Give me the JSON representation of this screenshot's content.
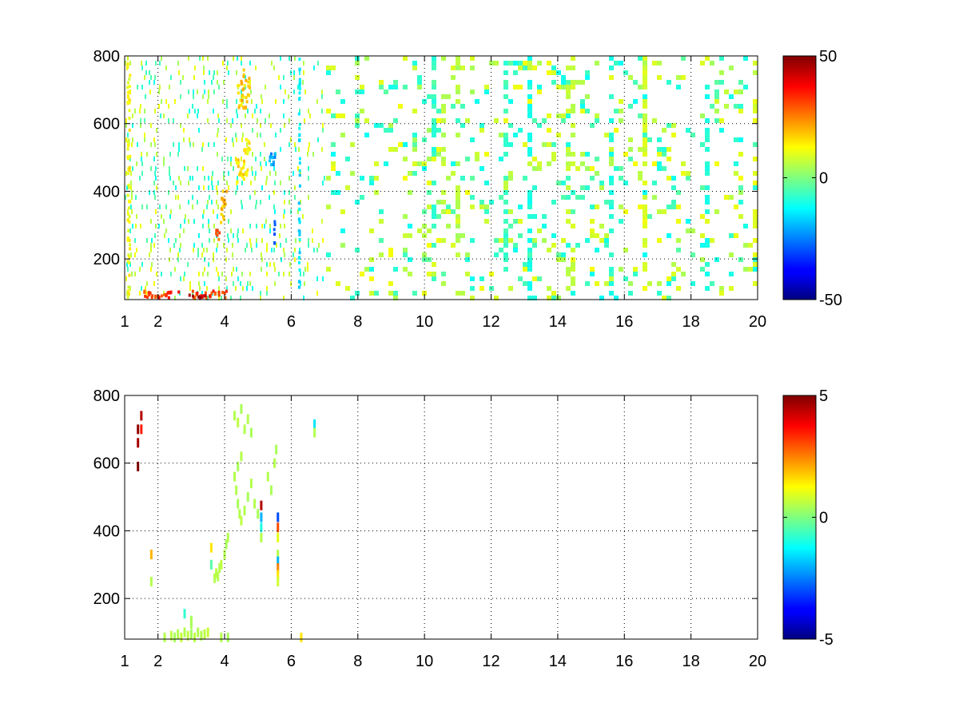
{
  "chart_data": [
    {
      "type": "heatmap",
      "title": "",
      "xlabel": "",
      "ylabel": "",
      "xlim": [
        1,
        20
      ],
      "ylim": [
        80,
        800
      ],
      "x_ticks": [
        1,
        2,
        4,
        6,
        8,
        10,
        12,
        14,
        16,
        18,
        20
      ],
      "y_ticks": [
        200,
        400,
        600,
        800
      ],
      "grid": true,
      "colormap": "jet",
      "clim": [
        -50,
        50
      ],
      "colorbar_ticks": [
        "50",
        "0",
        "-50"
      ],
      "seed": 7,
      "density_profile": [
        {
          "x": 1.0,
          "d": 0.3
        },
        {
          "x": 2.0,
          "d": 0.26
        },
        {
          "x": 4.0,
          "d": 0.33
        },
        {
          "x": 6.0,
          "d": 0.26
        },
        {
          "x": 8.0,
          "d": 0.12
        },
        {
          "x": 10.0,
          "d": 0.13
        },
        {
          "x": 12.0,
          "d": 0.13
        },
        {
          "x": 14.0,
          "d": 0.15
        },
        {
          "x": 16.0,
          "d": 0.14
        },
        {
          "x": 18.0,
          "d": 0.1
        },
        {
          "x": 20.0,
          "d": 0.11
        }
      ],
      "dense_columns": [
        {
          "x": 10.3,
          "d": 0.45,
          "v": -8
        },
        {
          "x": 10.6,
          "d": 0.35,
          "v": 6
        },
        {
          "x": 11.0,
          "d": 0.35,
          "v": 5
        },
        {
          "x": 12.4,
          "d": 0.4,
          "v": -7
        },
        {
          "x": 13.2,
          "d": 0.6,
          "v": -10
        },
        {
          "x": 14.4,
          "d": 0.4,
          "v": 7
        },
        {
          "x": 15.6,
          "d": 0.55,
          "v": -9
        },
        {
          "x": 16.6,
          "d": 0.55,
          "v": 8
        },
        {
          "x": 18.5,
          "d": 0.5,
          "v": -10
        },
        {
          "x": 20.0,
          "d": 0.45,
          "v": 9
        }
      ],
      "features": [
        {
          "x": [
            1.4,
            4.2
          ],
          "y": [
            80,
            110
          ],
          "v": 32
        },
        {
          "x": [
            2.8,
            3.5
          ],
          "y": [
            80,
            100
          ],
          "v": 45
        },
        {
          "x": [
            3.7,
            3.9
          ],
          "y": [
            250,
            300
          ],
          "v": 28
        },
        {
          "x": [
            3.85,
            4.1
          ],
          "y": [
            300,
            420
          ],
          "v": 18
        },
        {
          "x": [
            4.3,
            4.75
          ],
          "y": [
            420,
            500
          ],
          "v": 16
        },
        {
          "x": [
            4.35,
            4.8
          ],
          "y": [
            640,
            770
          ],
          "v": 18
        },
        {
          "x": [
            4.5,
            4.8
          ],
          "y": [
            500,
            560
          ],
          "v": 14
        },
        {
          "x": [
            5.3,
            5.6
          ],
          "y": [
            470,
            530
          ],
          "v": -22
        },
        {
          "x": [
            5.45,
            5.55
          ],
          "y": [
            240,
            320
          ],
          "v": -26
        },
        {
          "x": [
            1.05,
            1.2
          ],
          "y": [
            80,
            800
          ],
          "v": 12
        },
        {
          "x": [
            6.2,
            6.3
          ],
          "y": [
            80,
            800
          ],
          "v": -14
        }
      ]
    },
    {
      "type": "heatmap",
      "title": "",
      "xlabel": "",
      "ylabel": "",
      "xlim": [
        1,
        20
      ],
      "ylim": [
        80,
        800
      ],
      "x_ticks": [
        1,
        2,
        4,
        6,
        8,
        10,
        12,
        14,
        16,
        18,
        20
      ],
      "y_ticks": [
        200,
        400,
        600,
        800
      ],
      "grid": true,
      "colormap": "jet",
      "clim": [
        -5,
        5
      ],
      "colorbar_ticks": [
        "5",
        "0",
        "-5"
      ],
      "sparse_cells": [
        {
          "x": 1.4,
          "y": 700,
          "v": 4.8
        },
        {
          "x": 1.4,
          "y": 660,
          "v": 4.6
        },
        {
          "x": 1.4,
          "y": 590,
          "v": 5
        },
        {
          "x": 1.5,
          "y": 740,
          "v": 4.5
        },
        {
          "x": 1.5,
          "y": 700,
          "v": 3.5
        },
        {
          "x": 1.8,
          "y": 330,
          "v": 2
        },
        {
          "x": 1.8,
          "y": 250,
          "v": 0.5
        },
        {
          "x": 2.2,
          "y": 85,
          "v": 0.5
        },
        {
          "x": 2.4,
          "y": 90,
          "v": 0.6
        },
        {
          "x": 2.5,
          "y": 85,
          "v": 0.4
        },
        {
          "x": 2.6,
          "y": 95,
          "v": 0.5
        },
        {
          "x": 2.7,
          "y": 85,
          "v": 0.7
        },
        {
          "x": 2.8,
          "y": 100,
          "v": 0.5
        },
        {
          "x": 2.9,
          "y": 90,
          "v": 0.6
        },
        {
          "x": 3.0,
          "y": 95,
          "v": 0.4
        },
        {
          "x": 3.1,
          "y": 85,
          "v": 0.6
        },
        {
          "x": 3.2,
          "y": 100,
          "v": 0.5
        },
        {
          "x": 3.3,
          "y": 90,
          "v": 0.5
        },
        {
          "x": 3.4,
          "y": 95,
          "v": 0.6
        },
        {
          "x": 3.5,
          "y": 100,
          "v": 0.7
        },
        {
          "x": 2.8,
          "y": 155,
          "v": -0.8
        },
        {
          "x": 3.0,
          "y": 125,
          "v": 0.4
        },
        {
          "x": 3.0,
          "y": 135,
          "v": 0.4
        },
        {
          "x": 3.9,
          "y": 85,
          "v": 0.5
        },
        {
          "x": 4.1,
          "y": 85,
          "v": 0.4
        },
        {
          "x": 3.6,
          "y": 350,
          "v": 1.5
        },
        {
          "x": 3.6,
          "y": 300,
          "v": -0.4
        },
        {
          "x": 3.7,
          "y": 260,
          "v": 0.5
        },
        {
          "x": 3.75,
          "y": 275,
          "v": 0.6
        },
        {
          "x": 3.8,
          "y": 265,
          "v": 0.5
        },
        {
          "x": 3.85,
          "y": 290,
          "v": 0.5
        },
        {
          "x": 3.9,
          "y": 300,
          "v": 0.6
        },
        {
          "x": 4.0,
          "y": 330,
          "v": 0.5
        },
        {
          "x": 4.05,
          "y": 360,
          "v": 0.4
        },
        {
          "x": 4.1,
          "y": 380,
          "v": 0.5
        },
        {
          "x": 4.3,
          "y": 740,
          "v": 0.5
        },
        {
          "x": 4.4,
          "y": 720,
          "v": 0.6
        },
        {
          "x": 4.5,
          "y": 760,
          "v": 0.4
        },
        {
          "x": 4.6,
          "y": 700,
          "v": 0.5
        },
        {
          "x": 4.7,
          "y": 730,
          "v": 0.5
        },
        {
          "x": 4.8,
          "y": 690,
          "v": 0.4
        },
        {
          "x": 4.3,
          "y": 560,
          "v": 0.5
        },
        {
          "x": 4.35,
          "y": 520,
          "v": 0.5
        },
        {
          "x": 4.4,
          "y": 480,
          "v": 0.4
        },
        {
          "x": 4.45,
          "y": 450,
          "v": 0.5
        },
        {
          "x": 4.5,
          "y": 430,
          "v": 0.6
        },
        {
          "x": 4.6,
          "y": 460,
          "v": 0.5
        },
        {
          "x": 4.7,
          "y": 500,
          "v": 0.4
        },
        {
          "x": 4.8,
          "y": 540,
          "v": 0.5
        },
        {
          "x": 4.9,
          "y": 480,
          "v": 0.5
        },
        {
          "x": 5.0,
          "y": 450,
          "v": 0.4
        },
        {
          "x": 4.5,
          "y": 620,
          "v": 0.5
        },
        {
          "x": 4.4,
          "y": 590,
          "v": 0.4
        },
        {
          "x": 5.1,
          "y": 475,
          "v": 4.5
        },
        {
          "x": 5.1,
          "y": 440,
          "v": -2
        },
        {
          "x": 5.1,
          "y": 410,
          "v": -1
        },
        {
          "x": 5.1,
          "y": 380,
          "v": 0.5
        },
        {
          "x": 5.3,
          "y": 560,
          "v": 0.5
        },
        {
          "x": 5.4,
          "y": 520,
          "v": 0.4
        },
        {
          "x": 5.5,
          "y": 600,
          "v": 0.5
        },
        {
          "x": 5.55,
          "y": 640,
          "v": 0.4
        },
        {
          "x": 5.6,
          "y": 440,
          "v": -3
        },
        {
          "x": 5.6,
          "y": 410,
          "v": 3
        },
        {
          "x": 5.6,
          "y": 380,
          "v": 1
        },
        {
          "x": 5.6,
          "y": 330,
          "v": 0.5
        },
        {
          "x": 5.6,
          "y": 310,
          "v": -2
        },
        {
          "x": 5.6,
          "y": 290,
          "v": 2.5
        },
        {
          "x": 5.6,
          "y": 270,
          "v": 1.5
        },
        {
          "x": 5.6,
          "y": 250,
          "v": 0.8
        },
        {
          "x": 6.7,
          "y": 715,
          "v": -1.5
        },
        {
          "x": 6.7,
          "y": 690,
          "v": 0.5
        },
        {
          "x": 6.3,
          "y": 85,
          "v": 1.5
        }
      ]
    }
  ]
}
